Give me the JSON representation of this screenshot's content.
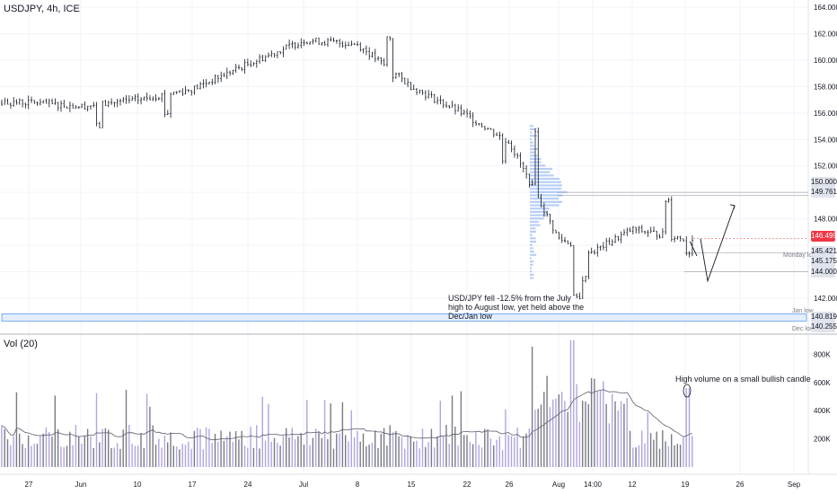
{
  "header": {
    "symbol": "USDJPY, 4h, ICE"
  },
  "volume_pane": {
    "label": "Vol (20)"
  },
  "annotations": {
    "main": "USD/JPY fell -12.5% from the July high to August low, yet held above the Dec/Jan low",
    "volume": "High volume on a small bullish candle"
  },
  "levels": {
    "monday_low": "Monday low",
    "jan_low": "Jan low",
    "dec_low": "Dec low"
  },
  "price_tags": [
    {
      "label": "150.000",
      "value": 150.0,
      "style": "grey"
    },
    {
      "label": "149.761",
      "value": 149.761,
      "style": "grey"
    },
    {
      "label": "146.499",
      "value": 146.499,
      "style": "red"
    },
    {
      "label": "145.421",
      "value": 145.421,
      "style": "grey"
    },
    {
      "label": "145.175",
      "value": 145.175,
      "style": "grey"
    },
    {
      "label": "144.000",
      "value": 144.0,
      "style": "grey"
    },
    {
      "label": "140.819",
      "value": 140.819,
      "style": "grey"
    },
    {
      "label": "140.255",
      "value": 140.255,
      "style": "grey"
    }
  ],
  "colors": {
    "candle": "#131722",
    "volume_up": "#b2a4e0",
    "volume_down": "#787b86",
    "volume_ma": "#5d606b",
    "zone_fill": "#e3eefc",
    "zone_border": "#5b9cf6",
    "profile": "#7ba7ef",
    "last_price": "#f23645"
  },
  "chart_data": [
    {
      "type": "candlestick",
      "title": "USDJPY, 4h, ICE",
      "y_ticks": [
        "164.000",
        "162.000",
        "160.000",
        "158.000",
        "156.000",
        "154.000",
        "152.000",
        "148.000",
        "142.000"
      ],
      "x_ticks": [
        "27",
        "Jun",
        "10",
        "17",
        "24",
        "Jul",
        "8",
        "15",
        "22",
        "26",
        "Aug",
        "14:00",
        "12",
        "19",
        "26",
        "Sep"
      ],
      "ylim": [
        139.8,
        164.5
      ],
      "last_price": 146.499,
      "key_points": [
        {
          "label": "27",
          "close": 156.8
        },
        {
          "label": "Jun",
          "close": 156.5
        },
        {
          "label": "10",
          "close": 157.0
        },
        {
          "label": "17",
          "close": 157.8
        },
        {
          "label": "24",
          "close": 159.7
        },
        {
          "label": "Jul",
          "close": 161.5
        },
        {
          "label": "8",
          "close": 161.2
        },
        {
          "label": "15",
          "close": 158.0
        },
        {
          "label": "22",
          "close": 155.8
        },
        {
          "label": "26",
          "close": 153.8
        },
        {
          "label": "Aug",
          "close": 146.5
        },
        {
          "label": "14:00",
          "close": 145.5
        },
        {
          "label": "12",
          "close": 147.2
        },
        {
          "label": "19",
          "close": 146.5
        }
      ],
      "zones": [
        {
          "label": "Dec/Jan low zone",
          "from": 140.255,
          "to": 140.819
        }
      ],
      "projection": [
        146.499,
        144.0,
        149.0
      ]
    },
    {
      "type": "bar",
      "title": "Vol (20)",
      "y_ticks": [
        "800K",
        "600K",
        "400K",
        "200K"
      ],
      "ylim": [
        0,
        1000000
      ]
    }
  ]
}
